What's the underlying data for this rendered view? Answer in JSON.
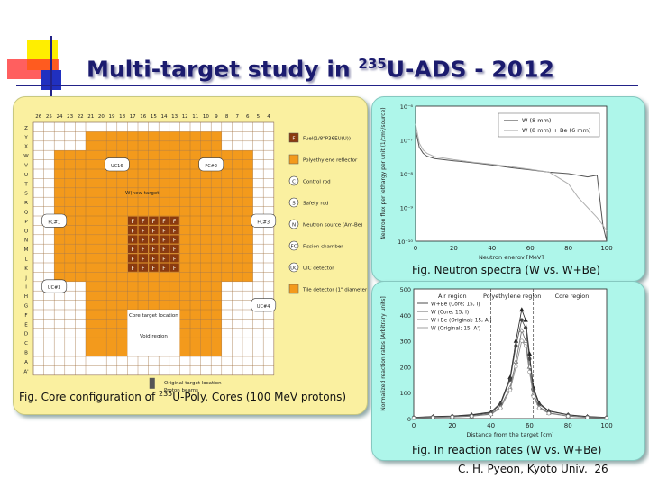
{
  "title": {
    "pre": "Multi-target study in ",
    "sup": "235",
    "post": "U-ADS - 2012"
  },
  "core": {
    "caption_pre": "Fig. Core configuration of ",
    "caption_sup": "235",
    "caption_post": "U-Poly. Cores (100 MeV protons)",
    "columns": [
      "26",
      "25",
      "24",
      "23",
      "22",
      "21",
      "20",
      "19",
      "18",
      "17",
      "16",
      "15",
      "14",
      "13",
      "12",
      "11",
      "10",
      "9",
      "8",
      "7",
      "6",
      "5",
      "4"
    ],
    "rows": [
      "Z",
      "Y",
      "X",
      "W",
      "V",
      "U",
      "T",
      "S",
      "R",
      "Q",
      "P",
      "O",
      "N",
      "M",
      "L",
      "K",
      "J",
      "I",
      "H",
      "G",
      "F",
      "E",
      "D",
      "C",
      "B",
      "A",
      "A'"
    ],
    "legend": [
      {
        "symbol": "F",
        "label": "Fuel(1/8\"P36EU(U))"
      },
      {
        "symbol": "",
        "label": "Polyethylene reflector"
      },
      {
        "symbol": "C",
        "label": "Control rod"
      },
      {
        "symbol": "S",
        "label": "Safety rod"
      },
      {
        "symbol": "N",
        "label": "Neutron source (Am-Be)"
      },
      {
        "symbol": "FC",
        "label": "Fission chamber"
      },
      {
        "symbol": "UC",
        "label": "UIC detector"
      },
      {
        "symbol": "",
        "label": "Tile detector (1\" diameter)"
      }
    ],
    "labels": {
      "w_target": "W(new target)",
      "core_target": "Core target location",
      "void": "Void region",
      "original": "Original target location",
      "proton": "Proton beams"
    },
    "chambers": [
      "UC16",
      "FC#2",
      "FC#1",
      "FC#3",
      "UC#3",
      "UC#4"
    ]
  },
  "spectra": {
    "caption": "Fig. Neutron spectra (W vs. W+Be)",
    "xlabel": "Neutron energy [MeV]",
    "ylabel": "Neutron flux per lethargy per unit (1/cm²/source)",
    "legend": [
      "W (8 mm)",
      "W (8 mm) + Be (6 mm)"
    ]
  },
  "rates": {
    "caption": "Fig. In reaction rates (W vs. W+Be)",
    "xlabel": "Distance from the target [cm]",
    "ylabel": "Normalized reaction rates [Arbitrary units]",
    "regions": [
      "Air region",
      "Polyethylene region",
      "Core region"
    ],
    "legend": [
      "W+Be (Core; 15, I)",
      "W (Core; 15, I)",
      "W+Be (Original; 15, A')",
      "W (Original; 15, A')"
    ]
  },
  "footer": {
    "author": "C. H. Pyeon, Kyoto Univ.",
    "page": "26"
  },
  "chart_data": [
    {
      "type": "line",
      "title": "",
      "xlabel": "Neutron energy [MeV]",
      "ylabel": "Neutron flux per lethargy per unit (1/cm²/source)",
      "xlim": [
        0,
        100
      ],
      "ylim": [
        1e-10,
        1e-06
      ],
      "yscale": "log",
      "x_ticks": [
        "0",
        "20",
        "40",
        "60",
        "80",
        "100"
      ],
      "y_ticks": [
        "10⁻¹⁰",
        "10⁻⁹",
        "10⁻⁸",
        "10⁻⁷",
        "10⁻⁶"
      ],
      "legend_position": "top-right",
      "series": [
        {
          "name": "W (8 mm)",
          "color": "#555555",
          "x": [
            0,
            2,
            4,
            6,
            10,
            20,
            30,
            40,
            50,
            60,
            70,
            80,
            85,
            90,
            95,
            98,
            100
          ],
          "y": [
            2e-07,
            6e-08,
            4e-08,
            3.3e-08,
            2.8e-08,
            2.4e-08,
            2.1e-08,
            1.8e-08,
            1.5e-08,
            1.3e-08,
            1.1e-08,
            1e-08,
            9e-09,
            8e-09,
            9e-09,
            3e-10,
            1e-10
          ]
        },
        {
          "name": "W (8 mm) + Be (6 mm)",
          "color": "#b0b0b0",
          "x": [
            0,
            2,
            4,
            6,
            10,
            20,
            30,
            40,
            50,
            60,
            70,
            80,
            85,
            90,
            95,
            98,
            100
          ],
          "y": [
            3e-07,
            8e-08,
            5e-08,
            4e-08,
            3.2e-08,
            2.6e-08,
            2.2e-08,
            1.9e-08,
            1.6e-08,
            1.35e-08,
            1.1e-08,
            5e-09,
            2e-09,
            1e-09,
            5e-10,
            3e-10,
            2e-10
          ]
        }
      ]
    },
    {
      "type": "line",
      "title": "",
      "xlabel": "Distance from the target [cm]",
      "ylabel": "Normalized reaction rates [Arbitrary units]",
      "xlim": [
        0,
        100
      ],
      "ylim": [
        0,
        500
      ],
      "x_ticks": [
        "0",
        "20",
        "40",
        "60",
        "80",
        "100"
      ],
      "y_ticks": [
        "0",
        "100",
        "200",
        "300",
        "400",
        "500"
      ],
      "legend_position": "top-left",
      "series": [
        {
          "name": "W+Be (Core; 15, I)",
          "x": [
            0,
            10,
            20,
            30,
            40,
            45,
            50,
            53,
            56,
            58,
            60,
            62,
            65,
            70,
            80,
            90,
            100
          ],
          "y": [
            5,
            8,
            10,
            15,
            25,
            60,
            160,
            300,
            420,
            380,
            250,
            120,
            60,
            30,
            15,
            8,
            5
          ]
        },
        {
          "name": "W (Core; 15, I)",
          "x": [
            0,
            10,
            20,
            30,
            40,
            45,
            50,
            53,
            56,
            58,
            60,
            62,
            65,
            70,
            80,
            90,
            100
          ],
          "y": [
            4,
            7,
            9,
            13,
            22,
            55,
            150,
            280,
            380,
            350,
            230,
            110,
            55,
            28,
            14,
            7,
            4
          ]
        },
        {
          "name": "W+Be (Original; 15, A')",
          "x": [
            0,
            10,
            20,
            30,
            40,
            45,
            50,
            53,
            56,
            58,
            60,
            62,
            65,
            70,
            80,
            90,
            100
          ],
          "y": [
            3,
            5,
            7,
            10,
            18,
            45,
            120,
            220,
            340,
            300,
            200,
            95,
            45,
            22,
            10,
            5,
            3
          ]
        },
        {
          "name": "W (Original; 15, A')",
          "x": [
            0,
            10,
            20,
            30,
            40,
            45,
            50,
            53,
            56,
            58,
            60,
            62,
            65,
            70,
            80,
            90,
            100
          ],
          "y": [
            2,
            4,
            6,
            9,
            16,
            40,
            110,
            200,
            300,
            280,
            180,
            85,
            40,
            20,
            9,
            4,
            2
          ]
        }
      ]
    }
  ]
}
